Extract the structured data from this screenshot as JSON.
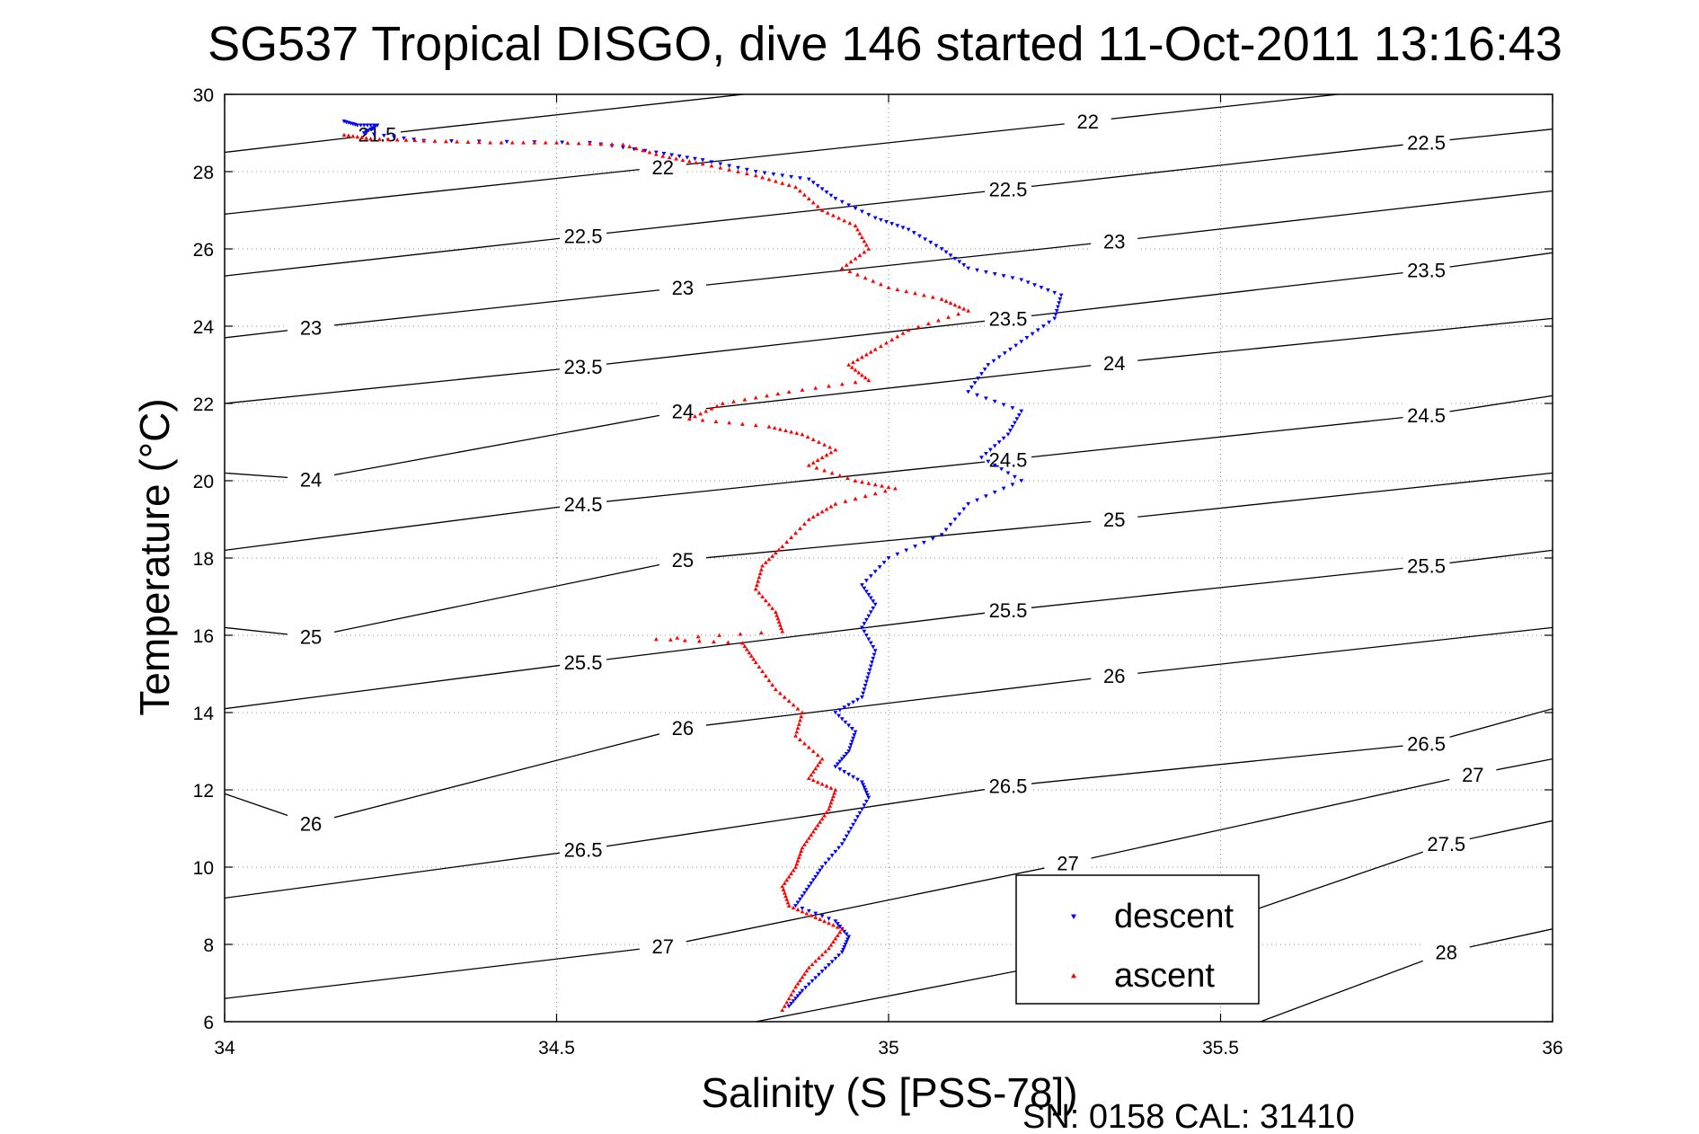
{
  "chart_data": {
    "type": "scatter",
    "title": "SG537 Tropical DISGO, dive 146 started 11-Oct-2011 13:16:43",
    "xlabel": "Salinity (S [PSS-78])",
    "ylabel": "Temperature (°C)",
    "footer": "SN: 0158  CAL: 31410",
    "xlim": [
      34,
      36
    ],
    "ylim": [
      6,
      30
    ],
    "x_ticks": [
      "34",
      "34.5",
      "35",
      "35.5",
      "36"
    ],
    "y_ticks": [
      "6",
      "8",
      "10",
      "12",
      "14",
      "16",
      "18",
      "20",
      "22",
      "24",
      "26",
      "28",
      "30"
    ],
    "grid": true,
    "legend_position": "bottom-right",
    "series": [
      {
        "name": "descent",
        "color": "#0000ff",
        "marker": "triangle-down",
        "points": [
          [
            34.18,
            29.3
          ],
          [
            34.2,
            29.2
          ],
          [
            34.23,
            29.2
          ],
          [
            34.21,
            29.0
          ],
          [
            34.3,
            28.8
          ],
          [
            34.55,
            28.75
          ],
          [
            34.65,
            28.5
          ],
          [
            34.72,
            28.3
          ],
          [
            34.8,
            28.0
          ],
          [
            34.88,
            27.8
          ],
          [
            34.92,
            27.3
          ],
          [
            34.98,
            26.8
          ],
          [
            35.03,
            26.5
          ],
          [
            35.08,
            26.0
          ],
          [
            35.12,
            25.5
          ],
          [
            35.2,
            25.2
          ],
          [
            35.26,
            24.8
          ],
          [
            35.25,
            24.2
          ],
          [
            35.2,
            23.6
          ],
          [
            35.15,
            23.0
          ],
          [
            35.12,
            22.3
          ],
          [
            35.2,
            21.8
          ],
          [
            35.18,
            21.2
          ],
          [
            35.14,
            20.6
          ],
          [
            35.2,
            20.0
          ],
          [
            35.12,
            19.4
          ],
          [
            35.08,
            18.6
          ],
          [
            35.0,
            18.0
          ],
          [
            34.96,
            17.3
          ],
          [
            34.98,
            16.8
          ],
          [
            34.96,
            16.2
          ],
          [
            34.98,
            15.6
          ],
          [
            34.97,
            15.0
          ],
          [
            34.96,
            14.4
          ],
          [
            34.92,
            14.0
          ],
          [
            34.95,
            13.5
          ],
          [
            34.94,
            13.0
          ],
          [
            34.92,
            12.6
          ],
          [
            34.96,
            12.2
          ],
          [
            34.97,
            11.8
          ],
          [
            34.95,
            11.2
          ],
          [
            34.93,
            10.6
          ],
          [
            34.9,
            10.0
          ],
          [
            34.88,
            9.5
          ],
          [
            34.86,
            9.0
          ],
          [
            34.92,
            8.6
          ],
          [
            34.94,
            8.2
          ],
          [
            34.93,
            7.8
          ],
          [
            34.9,
            7.3
          ],
          [
            34.87,
            6.8
          ],
          [
            34.85,
            6.4
          ]
        ]
      },
      {
        "name": "ascent",
        "color": "#ff0000",
        "marker": "triangle-up",
        "points": [
          [
            34.18,
            28.95
          ],
          [
            34.22,
            28.85
          ],
          [
            34.3,
            28.8
          ],
          [
            34.4,
            28.75
          ],
          [
            34.5,
            28.75
          ],
          [
            34.6,
            28.7
          ],
          [
            34.66,
            28.4
          ],
          [
            34.72,
            28.2
          ],
          [
            34.8,
            27.9
          ],
          [
            34.86,
            27.6
          ],
          [
            34.9,
            27.0
          ],
          [
            34.95,
            26.6
          ],
          [
            34.97,
            26.0
          ],
          [
            34.93,
            25.5
          ],
          [
            35.0,
            25.0
          ],
          [
            35.08,
            24.7
          ],
          [
            35.12,
            24.4
          ],
          [
            35.03,
            23.9
          ],
          [
            34.98,
            23.4
          ],
          [
            34.94,
            23.0
          ],
          [
            34.97,
            22.6
          ],
          [
            34.85,
            22.3
          ],
          [
            34.75,
            22.0
          ],
          [
            34.7,
            21.6
          ],
          [
            34.82,
            21.4
          ],
          [
            34.87,
            21.2
          ],
          [
            34.92,
            20.8
          ],
          [
            34.88,
            20.4
          ],
          [
            34.95,
            20.0
          ],
          [
            35.01,
            19.8
          ],
          [
            34.92,
            19.4
          ],
          [
            34.88,
            19.0
          ],
          [
            34.84,
            18.3
          ],
          [
            34.81,
            17.8
          ],
          [
            34.8,
            17.2
          ],
          [
            34.83,
            16.6
          ],
          [
            34.84,
            16.1
          ],
          [
            34.65,
            15.9
          ],
          [
            34.78,
            15.8
          ],
          [
            34.8,
            15.3
          ],
          [
            34.83,
            14.6
          ],
          [
            34.87,
            14.0
          ],
          [
            34.86,
            13.4
          ],
          [
            34.9,
            12.8
          ],
          [
            34.88,
            12.3
          ],
          [
            34.92,
            12.0
          ],
          [
            34.91,
            11.5
          ],
          [
            34.89,
            11.0
          ],
          [
            34.87,
            10.5
          ],
          [
            34.86,
            10.0
          ],
          [
            34.84,
            9.5
          ],
          [
            34.85,
            9.0
          ],
          [
            34.89,
            8.7
          ],
          [
            34.93,
            8.4
          ],
          [
            34.91,
            7.9
          ],
          [
            34.88,
            7.4
          ],
          [
            34.86,
            6.9
          ],
          [
            34.84,
            6.3
          ]
        ]
      }
    ],
    "density_contours": [
      {
        "label": "21.5",
        "points": [
          [
            34.0,
            28.5
          ],
          [
            34.23,
            28.96
          ],
          [
            36.0,
            32.3
          ]
        ]
      },
      {
        "label": "22",
        "points": [
          [
            34.0,
            26.9
          ],
          [
            34.66,
            28.12
          ],
          [
            35.3,
            29.3
          ],
          [
            36.0,
            30.6
          ]
        ]
      },
      {
        "label": "22.5",
        "points": [
          [
            34.0,
            25.3
          ],
          [
            34.54,
            26.34
          ],
          [
            35.18,
            27.55
          ],
          [
            35.81,
            28.76
          ],
          [
            36.0,
            29.1
          ]
        ]
      },
      {
        "label": "23",
        "points": [
          [
            34.0,
            23.7
          ],
          [
            34.13,
            23.96
          ],
          [
            34.69,
            25.0
          ],
          [
            35.34,
            26.2
          ],
          [
            36.0,
            27.5
          ]
        ]
      },
      {
        "label": "23.5",
        "points": [
          [
            34.0,
            22.0
          ],
          [
            34.54,
            22.95
          ],
          [
            35.18,
            24.2
          ],
          [
            35.81,
            25.45
          ],
          [
            36.0,
            25.9
          ]
        ]
      },
      {
        "label": "24",
        "points": [
          [
            34.0,
            20.2
          ],
          [
            34.13,
            20.04
          ],
          [
            34.69,
            21.8
          ],
          [
            35.34,
            23.05
          ],
          [
            36.0,
            24.2
          ]
        ]
      },
      {
        "label": "24.5",
        "points": [
          [
            34.0,
            18.2
          ],
          [
            34.54,
            19.4
          ],
          [
            35.18,
            20.55
          ],
          [
            35.81,
            21.7
          ],
          [
            36.0,
            22.2
          ]
        ]
      },
      {
        "label": "25",
        "points": [
          [
            34.0,
            16.2
          ],
          [
            34.13,
            15.96
          ],
          [
            34.69,
            17.95
          ],
          [
            35.34,
            19.0
          ],
          [
            36.0,
            20.2
          ]
        ]
      },
      {
        "label": "25.5",
        "points": [
          [
            34.0,
            14.1
          ],
          [
            34.54,
            15.3
          ],
          [
            35.18,
            16.65
          ],
          [
            35.81,
            17.8
          ],
          [
            36.0,
            18.2
          ]
        ]
      },
      {
        "label": "26",
        "points": [
          [
            34.0,
            11.9
          ],
          [
            34.13,
            11.13
          ],
          [
            34.69,
            13.6
          ],
          [
            35.34,
            14.95
          ],
          [
            36.0,
            16.2
          ]
        ]
      },
      {
        "label": "26.5",
        "points": [
          [
            34.0,
            9.2
          ],
          [
            34.54,
            10.45
          ],
          [
            35.18,
            12.1
          ],
          [
            35.81,
            13.2
          ],
          [
            36.0,
            14.1
          ]
        ]
      },
      {
        "label": "27",
        "points": [
          [
            34.0,
            6.6
          ],
          [
            34.66,
            7.95
          ],
          [
            35.27,
            10.1
          ],
          [
            35.88,
            12.4
          ],
          [
            36.0,
            12.8
          ]
        ]
      },
      {
        "label": "27.5",
        "points": [
          [
            34.8,
            6.0
          ],
          [
            35.4,
            8.0
          ],
          [
            35.84,
            10.6
          ],
          [
            36.0,
            11.2
          ]
        ]
      },
      {
        "label": "28",
        "points": [
          [
            35.56,
            6.0
          ],
          [
            35.84,
            7.8
          ],
          [
            36.0,
            8.4
          ]
        ]
      }
    ]
  }
}
